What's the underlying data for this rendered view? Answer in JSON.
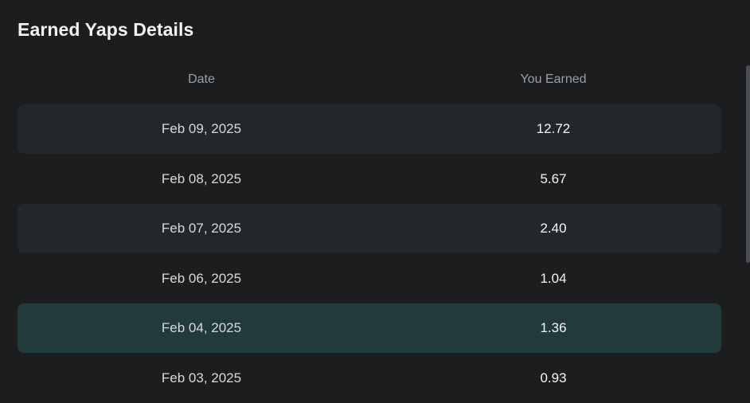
{
  "title": "Earned Yaps Details",
  "table": {
    "headers": {
      "date": "Date",
      "earned": "You Earned"
    },
    "rows": [
      {
        "date": "Feb 09, 2025",
        "earned": "12.72",
        "style": "alt"
      },
      {
        "date": "Feb 08, 2025",
        "earned": "5.67",
        "style": "plain"
      },
      {
        "date": "Feb 07, 2025",
        "earned": "2.40",
        "style": "alt"
      },
      {
        "date": "Feb 06, 2025",
        "earned": "1.04",
        "style": "plain"
      },
      {
        "date": "Feb 04, 2025",
        "earned": "1.36",
        "style": "highlight"
      },
      {
        "date": "Feb 03, 2025",
        "earned": "0.93",
        "style": "plain"
      }
    ]
  },
  "colors": {
    "background": "#1b1d1f",
    "row_alt": "#24272a",
    "row_highlight": "#213a3b",
    "header_text": "#9aa0a6"
  }
}
